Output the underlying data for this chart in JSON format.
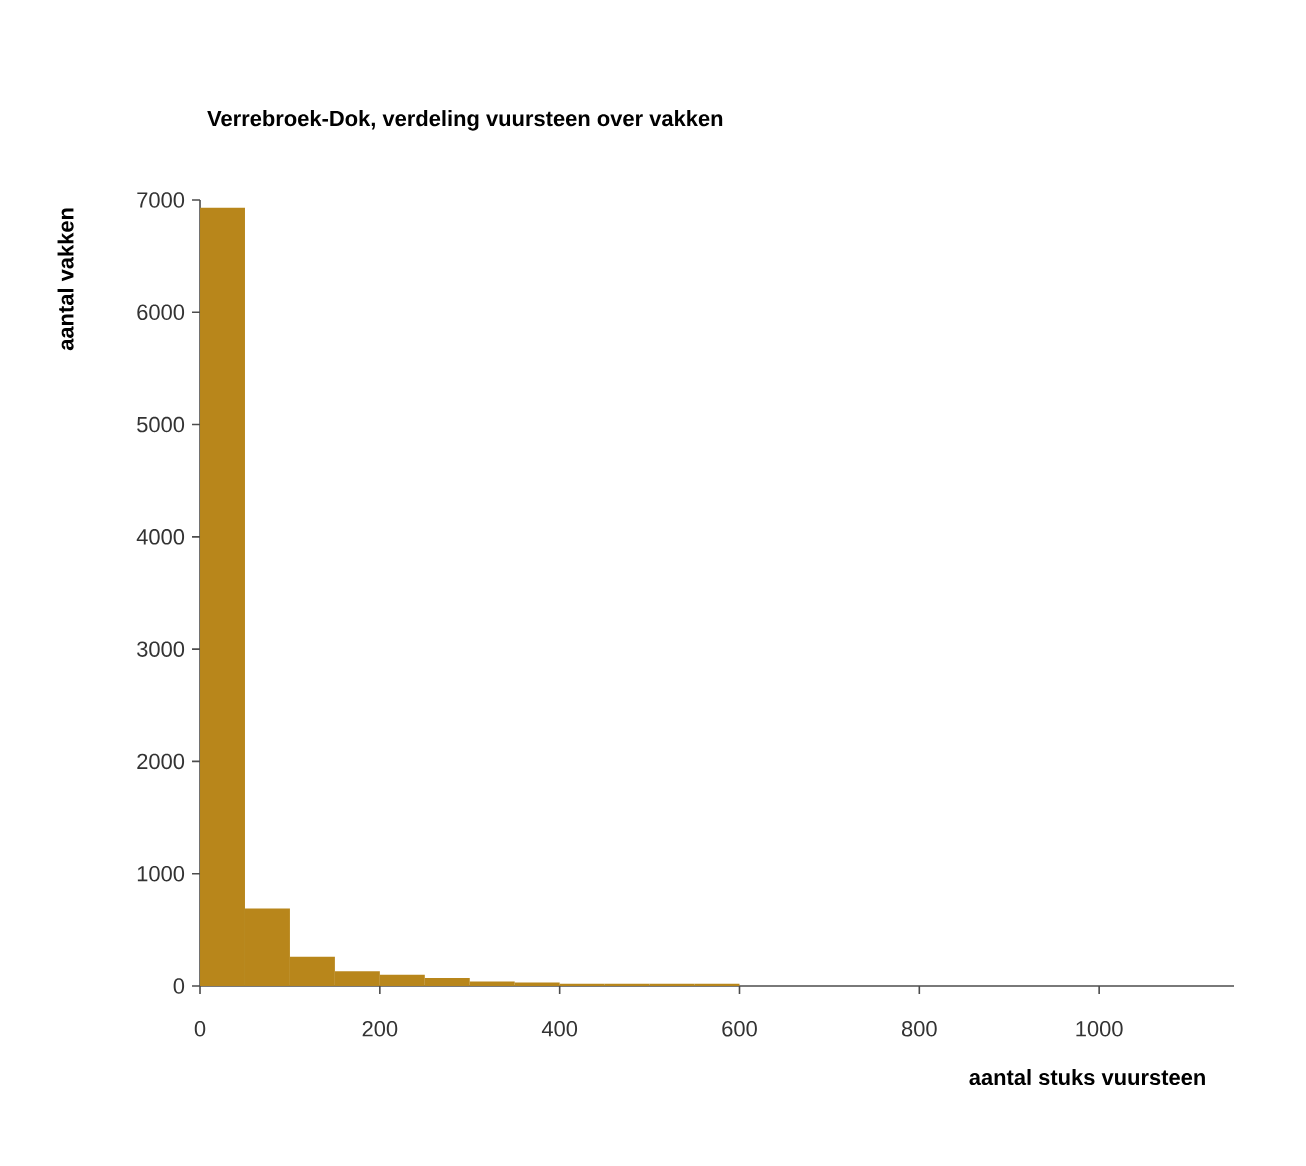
{
  "chart_data": {
    "type": "histogram",
    "title": "Verrebroek-Dok, verdeling vuursteen over vakken",
    "xlabel": "aantal stuks vuursteen",
    "ylabel": "aantal vakken",
    "bins": [
      0,
      50,
      100,
      150,
      200,
      250,
      300,
      350,
      400,
      450,
      500,
      550,
      600
    ],
    "values": [
      6930,
      690,
      260,
      130,
      100,
      70,
      40,
      30,
      20,
      20,
      20,
      20
    ],
    "color": "#b8861b",
    "xlim": [
      0,
      1150
    ],
    "ylim": [
      0,
      7000
    ],
    "xticks": [
      0,
      200,
      400,
      600,
      800,
      1000
    ],
    "yticks": [
      0,
      1000,
      2000,
      3000,
      4000,
      5000,
      6000,
      7000
    ],
    "grid": false
  }
}
